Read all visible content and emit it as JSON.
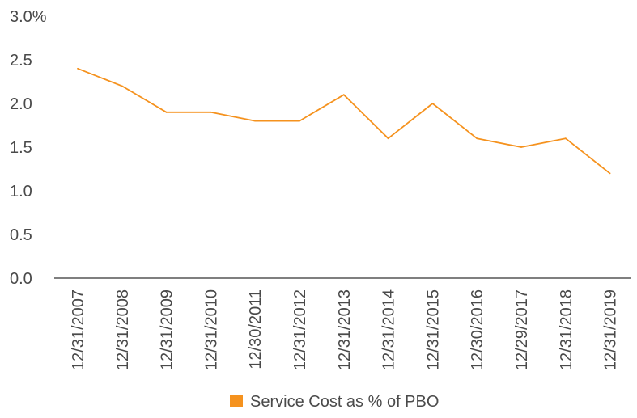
{
  "chart_data": {
    "type": "line",
    "title": "",
    "xlabel": "",
    "ylabel": "",
    "categories": [
      "12/31/2007",
      "12/31/2008",
      "12/31/2009",
      "12/31/2010",
      "12/30/2011",
      "12/31/2012",
      "12/31/2013",
      "12/31/2014",
      "12/31/2015",
      "12/30/2016",
      "12/29/2017",
      "12/31/2018",
      "12/31/2019"
    ],
    "series": [
      {
        "name": "Service Cost as % of PBO",
        "color": "#f5921e",
        "values": [
          2.4,
          2.2,
          1.9,
          1.9,
          1.8,
          1.8,
          2.1,
          1.6,
          2.0,
          1.6,
          1.5,
          1.6,
          1.2
        ]
      }
    ],
    "y_ticks": [
      "0.0",
      "0.5",
      "1.0",
      "1.5",
      "2.0",
      "2.5",
      "3.0%"
    ],
    "ylim": [
      0,
      3.0
    ],
    "grid": false,
    "legend_position": "bottom-center",
    "axis_color": "#333333"
  }
}
